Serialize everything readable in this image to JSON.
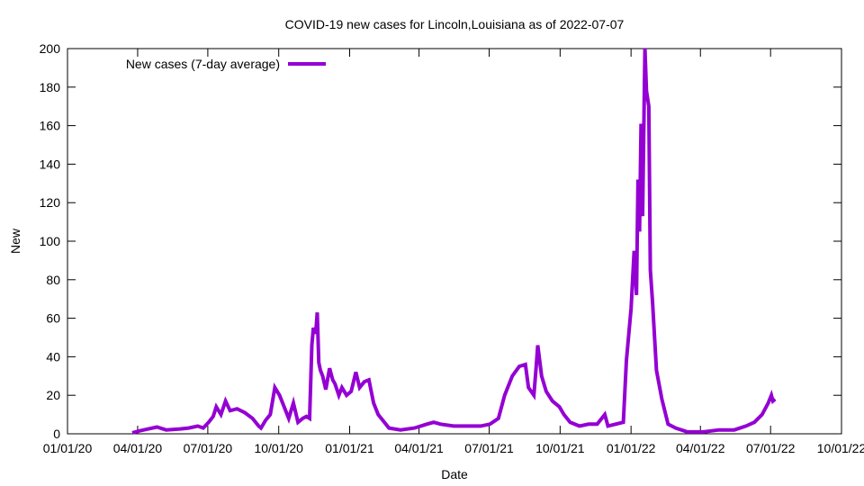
{
  "chart_data": {
    "type": "line",
    "title": "COVID-19 new cases for Lincoln,Louisiana as of 2022-07-07",
    "xlabel": "Date",
    "ylabel": "New",
    "xlim": [
      "2020-01-01",
      "2022-10-01"
    ],
    "ylim": [
      0,
      200
    ],
    "yticks": [
      0,
      20,
      40,
      60,
      80,
      100,
      120,
      140,
      160,
      180,
      200
    ],
    "xticks": [
      {
        "date": "2020-01-01",
        "label": "01/01/20"
      },
      {
        "date": "2020-04-01",
        "label": "04/01/20"
      },
      {
        "date": "2020-07-01",
        "label": "07/01/20"
      },
      {
        "date": "2020-10-01",
        "label": "10/01/20"
      },
      {
        "date": "2021-01-01",
        "label": "01/01/21"
      },
      {
        "date": "2021-04-01",
        "label": "04/01/21"
      },
      {
        "date": "2021-07-01",
        "label": "07/01/21"
      },
      {
        "date": "2021-10-01",
        "label": "10/01/21"
      },
      {
        "date": "2022-01-01",
        "label": "01/01/22"
      },
      {
        "date": "2022-04-01",
        "label": "04/01/22"
      },
      {
        "date": "2022-07-01",
        "label": "07/01/22"
      },
      {
        "date": "2022-10-01",
        "label": "10/01/22"
      }
    ],
    "grid": false,
    "legend_position": "top-left",
    "series": [
      {
        "name": "New cases (7-day average)",
        "color": "#9400d3",
        "points": [
          [
            "2020-03-25",
            0.5
          ],
          [
            "2020-04-03",
            1.5
          ],
          [
            "2020-04-15",
            2.5
          ],
          [
            "2020-04-26",
            3.5
          ],
          [
            "2020-05-08",
            2
          ],
          [
            "2020-05-26",
            2.5
          ],
          [
            "2020-06-06",
            3
          ],
          [
            "2020-06-18",
            4
          ],
          [
            "2020-06-25",
            3
          ],
          [
            "2020-07-02",
            6
          ],
          [
            "2020-07-08",
            9
          ],
          [
            "2020-07-12",
            14
          ],
          [
            "2020-07-18",
            10
          ],
          [
            "2020-07-24",
            17
          ],
          [
            "2020-07-30",
            12
          ],
          [
            "2020-08-08",
            13
          ],
          [
            "2020-08-18",
            11
          ],
          [
            "2020-08-28",
            8
          ],
          [
            "2020-09-05",
            4
          ],
          [
            "2020-09-08",
            3
          ],
          [
            "2020-09-14",
            7
          ],
          [
            "2020-09-20",
            10
          ],
          [
            "2020-09-26",
            24
          ],
          [
            "2020-10-02",
            20
          ],
          [
            "2020-10-08",
            14
          ],
          [
            "2020-10-14",
            8
          ],
          [
            "2020-10-20",
            16
          ],
          [
            "2020-10-26",
            6
          ],
          [
            "2020-11-01",
            8
          ],
          [
            "2020-11-06",
            9
          ],
          [
            "2020-11-10",
            8
          ],
          [
            "2020-11-13",
            46
          ],
          [
            "2020-11-15",
            55
          ],
          [
            "2020-11-18",
            52
          ],
          [
            "2020-11-20",
            63
          ],
          [
            "2020-11-22",
            37
          ],
          [
            "2020-11-24",
            33
          ],
          [
            "2020-11-27",
            30
          ],
          [
            "2020-12-01",
            23
          ],
          [
            "2020-12-06",
            34
          ],
          [
            "2020-12-10",
            28
          ],
          [
            "2020-12-13",
            26
          ],
          [
            "2020-12-18",
            20
          ],
          [
            "2020-12-22",
            24
          ],
          [
            "2020-12-28",
            20
          ],
          [
            "2021-01-03",
            22
          ],
          [
            "2021-01-09",
            32
          ],
          [
            "2021-01-14",
            24
          ],
          [
            "2021-01-20",
            27
          ],
          [
            "2021-01-26",
            28
          ],
          [
            "2021-02-01",
            16
          ],
          [
            "2021-02-07",
            10
          ],
          [
            "2021-02-13",
            7
          ],
          [
            "2021-02-21",
            3
          ],
          [
            "2021-03-08",
            2
          ],
          [
            "2021-03-26",
            3
          ],
          [
            "2021-04-11",
            5
          ],
          [
            "2021-04-20",
            6
          ],
          [
            "2021-04-29",
            5
          ],
          [
            "2021-05-16",
            4
          ],
          [
            "2021-06-03",
            4
          ],
          [
            "2021-06-20",
            4
          ],
          [
            "2021-07-02",
            5
          ],
          [
            "2021-07-13",
            8
          ],
          [
            "2021-07-21",
            20
          ],
          [
            "2021-07-31",
            30
          ],
          [
            "2021-08-09",
            35
          ],
          [
            "2021-08-17",
            36
          ],
          [
            "2021-08-21",
            24
          ],
          [
            "2021-08-28",
            20
          ],
          [
            "2021-08-31",
            35
          ],
          [
            "2021-09-02",
            46
          ],
          [
            "2021-09-07",
            30
          ],
          [
            "2021-09-13",
            22
          ],
          [
            "2021-09-21",
            17
          ],
          [
            "2021-09-30",
            14
          ],
          [
            "2021-10-06",
            10
          ],
          [
            "2021-10-14",
            6
          ],
          [
            "2021-10-26",
            4
          ],
          [
            "2021-11-07",
            5
          ],
          [
            "2021-11-18",
            5
          ],
          [
            "2021-11-28",
            10
          ],
          [
            "2021-12-02",
            4
          ],
          [
            "2021-12-12",
            5
          ],
          [
            "2021-12-22",
            6
          ],
          [
            "2021-12-26",
            38
          ],
          [
            "2022-01-01",
            65
          ],
          [
            "2022-01-05",
            95
          ],
          [
            "2022-01-08",
            72
          ],
          [
            "2022-01-10",
            132
          ],
          [
            "2022-01-12",
            105
          ],
          [
            "2022-01-14",
            161
          ],
          [
            "2022-01-16",
            113
          ],
          [
            "2022-01-19",
            200
          ],
          [
            "2022-01-21",
            178
          ],
          [
            "2022-01-24",
            170
          ],
          [
            "2022-01-26",
            85
          ],
          [
            "2022-01-29",
            68
          ],
          [
            "2022-02-03",
            33
          ],
          [
            "2022-02-10",
            18
          ],
          [
            "2022-02-18",
            5
          ],
          [
            "2022-02-28",
            3
          ],
          [
            "2022-03-15",
            1
          ],
          [
            "2022-04-05",
            1
          ],
          [
            "2022-04-25",
            2
          ],
          [
            "2022-05-15",
            2
          ],
          [
            "2022-05-30",
            4
          ],
          [
            "2022-06-10",
            6
          ],
          [
            "2022-06-20",
            10
          ],
          [
            "2022-06-28",
            16
          ],
          [
            "2022-07-02",
            20
          ],
          [
            "2022-07-04",
            17
          ],
          [
            "2022-07-07",
            18
          ]
        ]
      }
    ]
  }
}
